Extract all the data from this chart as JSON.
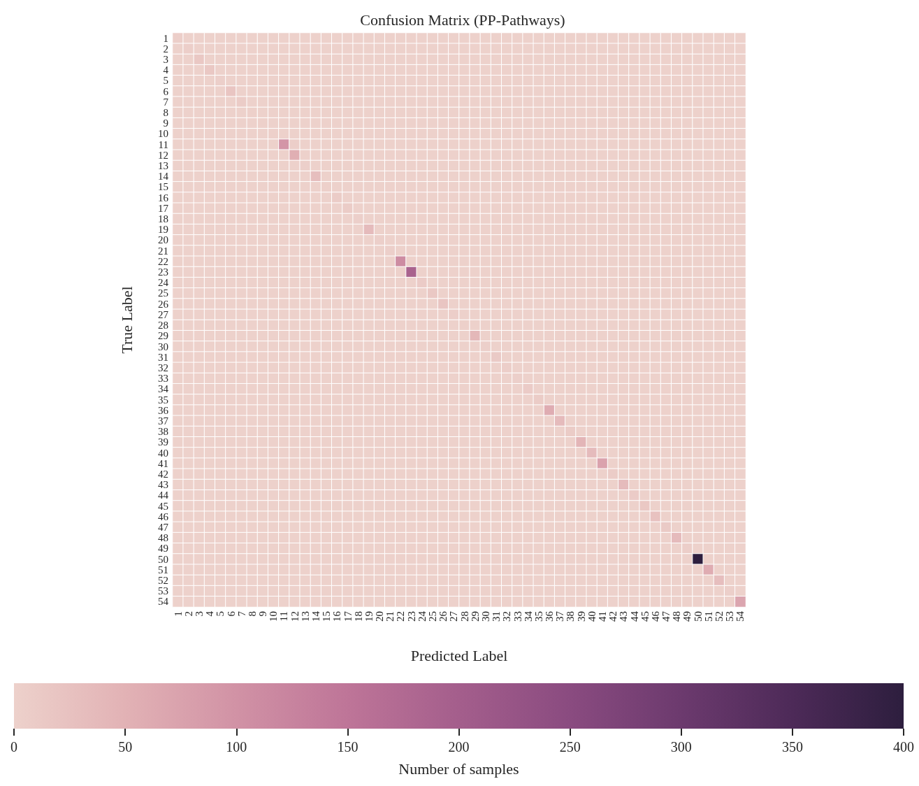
{
  "chart_data": {
    "type": "heatmap",
    "title": "Confusion Matrix (PP-Pathways)",
    "xlabel": "Predicted Label",
    "ylabel": "True Label",
    "clabel": "Number of samples",
    "categories": [
      "1",
      "2",
      "3",
      "4",
      "5",
      "6",
      "7",
      "8",
      "9",
      "10",
      "11",
      "12",
      "13",
      "14",
      "15",
      "16",
      "17",
      "18",
      "19",
      "20",
      "21",
      "22",
      "23",
      "24",
      "25",
      "26",
      "27",
      "28",
      "29",
      "30",
      "31",
      "32",
      "33",
      "34",
      "35",
      "36",
      "37",
      "38",
      "39",
      "40",
      "41",
      "42",
      "43",
      "44",
      "45",
      "46",
      "47",
      "48",
      "49",
      "50",
      "51",
      "52",
      "53",
      "54"
    ],
    "y_categories": [
      "1",
      "2",
      "3",
      "4",
      "5",
      "6",
      "7",
      "8",
      "9",
      "10",
      "11",
      "12",
      "13",
      "14",
      "15",
      "16",
      "17",
      "18",
      "19",
      "20",
      "21",
      "22",
      "23",
      "24",
      "25",
      "26",
      "27",
      "28",
      "29",
      "30",
      "31",
      "32",
      "33",
      "34",
      "35",
      "36",
      "37",
      "38",
      "39",
      "40",
      "41",
      "42",
      "43",
      "44",
      "45",
      "46",
      "47",
      "48",
      "49",
      "50",
      "51",
      "52",
      "53",
      "54"
    ],
    "clim": [
      0,
      400
    ],
    "cticks": [
      0,
      50,
      100,
      150,
      200,
      250,
      300,
      350,
      400
    ],
    "cells": [
      [
        5,
        0,
        0,
        0,
        0,
        0,
        0,
        0,
        0,
        0,
        0,
        0,
        0,
        0,
        0,
        0,
        0,
        0,
        0,
        0,
        0,
        0,
        0,
        0,
        0,
        0,
        0,
        0,
        0,
        0,
        0,
        0,
        0,
        0,
        0,
        0,
        0,
        0,
        0,
        0,
        0,
        0,
        0,
        0,
        0,
        0,
        0,
        0,
        0,
        0,
        0,
        0,
        0,
        0
      ],
      [
        0,
        5,
        0,
        0,
        0,
        0,
        0,
        0,
        0,
        0,
        0,
        0,
        0,
        0,
        0,
        0,
        0,
        0,
        0,
        0,
        0,
        0,
        0,
        0,
        0,
        0,
        0,
        0,
        0,
        0,
        0,
        0,
        0,
        0,
        0,
        0,
        0,
        0,
        0,
        0,
        0,
        0,
        0,
        0,
        0,
        0,
        0,
        0,
        0,
        0,
        0,
        0,
        0,
        0
      ],
      [
        0,
        0,
        15,
        0,
        0,
        0,
        0,
        0,
        0,
        0,
        0,
        0,
        0,
        0,
        0,
        0,
        0,
        0,
        0,
        0,
        0,
        0,
        0,
        0,
        0,
        0,
        0,
        0,
        0,
        0,
        0,
        0,
        0,
        0,
        0,
        0,
        0,
        0,
        0,
        0,
        0,
        0,
        0,
        0,
        0,
        0,
        0,
        0,
        0,
        0,
        0,
        0,
        0,
        0
      ],
      [
        0,
        0,
        0,
        15,
        0,
        0,
        0,
        0,
        0,
        0,
        0,
        0,
        0,
        0,
        0,
        0,
        0,
        0,
        0,
        0,
        0,
        0,
        0,
        0,
        0,
        0,
        0,
        0,
        0,
        0,
        0,
        0,
        0,
        0,
        0,
        0,
        0,
        0,
        0,
        0,
        0,
        0,
        0,
        0,
        0,
        0,
        0,
        0,
        0,
        0,
        0,
        0,
        0,
        0
      ],
      [
        0,
        0,
        0,
        0,
        3,
        0,
        0,
        0,
        0,
        0,
        0,
        0,
        0,
        0,
        0,
        0,
        0,
        0,
        0,
        0,
        0,
        0,
        0,
        0,
        0,
        0,
        0,
        0,
        0,
        0,
        0,
        0,
        0,
        0,
        0,
        0,
        0,
        0,
        0,
        0,
        0,
        0,
        0,
        0,
        0,
        0,
        0,
        0,
        0,
        0,
        0,
        0,
        0,
        0
      ],
      [
        0,
        0,
        0,
        0,
        0,
        20,
        0,
        0,
        0,
        0,
        0,
        0,
        0,
        0,
        0,
        0,
        0,
        0,
        0,
        0,
        0,
        0,
        0,
        0,
        0,
        0,
        0,
        0,
        0,
        0,
        0,
        0,
        0,
        0,
        0,
        0,
        0,
        0,
        0,
        0,
        0,
        0,
        0,
        0,
        0,
        0,
        0,
        0,
        0,
        0,
        0,
        0,
        0,
        0
      ],
      [
        0,
        0,
        0,
        0,
        0,
        0,
        8,
        0,
        0,
        0,
        0,
        0,
        0,
        0,
        0,
        0,
        0,
        0,
        0,
        0,
        0,
        0,
        0,
        0,
        0,
        0,
        0,
        0,
        0,
        0,
        0,
        0,
        0,
        0,
        0,
        0,
        0,
        0,
        0,
        0,
        0,
        0,
        0,
        0,
        0,
        0,
        0,
        0,
        0,
        0,
        0,
        0,
        0,
        0
      ],
      [
        0,
        0,
        0,
        0,
        0,
        0,
        0,
        2,
        0,
        0,
        0,
        0,
        0,
        0,
        0,
        0,
        0,
        0,
        0,
        0,
        0,
        0,
        0,
        0,
        0,
        0,
        0,
        0,
        0,
        0,
        0,
        0,
        0,
        0,
        0,
        0,
        0,
        0,
        0,
        0,
        0,
        0,
        0,
        0,
        0,
        0,
        0,
        0,
        0,
        0,
        0,
        0,
        0,
        0
      ],
      [
        0,
        0,
        0,
        0,
        0,
        0,
        0,
        0,
        2,
        0,
        0,
        0,
        0,
        0,
        0,
        0,
        0,
        0,
        0,
        0,
        0,
        0,
        0,
        0,
        0,
        0,
        0,
        0,
        0,
        0,
        0,
        0,
        0,
        0,
        0,
        0,
        0,
        0,
        0,
        0,
        0,
        0,
        0,
        0,
        0,
        0,
        0,
        0,
        0,
        0,
        0,
        0,
        0,
        0
      ],
      [
        0,
        0,
        0,
        0,
        0,
        0,
        0,
        0,
        0,
        2,
        0,
        0,
        0,
        0,
        0,
        0,
        0,
        0,
        0,
        0,
        0,
        0,
        0,
        0,
        0,
        0,
        0,
        0,
        0,
        0,
        0,
        0,
        0,
        0,
        0,
        0,
        0,
        0,
        0,
        0,
        0,
        0,
        0,
        0,
        0,
        0,
        0,
        0,
        0,
        0,
        0,
        0,
        0,
        0
      ],
      [
        0,
        0,
        0,
        0,
        0,
        0,
        0,
        0,
        0,
        0,
        95,
        5,
        0,
        0,
        0,
        0,
        0,
        0,
        0,
        0,
        0,
        0,
        0,
        0,
        0,
        0,
        0,
        0,
        0,
        0,
        0,
        0,
        0,
        0,
        0,
        0,
        0,
        0,
        0,
        0,
        0,
        0,
        0,
        0,
        0,
        0,
        0,
        0,
        0,
        0,
        0,
        0,
        0,
        0
      ],
      [
        0,
        0,
        0,
        0,
        0,
        0,
        0,
        0,
        0,
        0,
        0,
        55,
        0,
        0,
        0,
        0,
        0,
        0,
        0,
        0,
        0,
        0,
        0,
        0,
        0,
        0,
        0,
        0,
        0,
        0,
        0,
        0,
        0,
        0,
        0,
        0,
        0,
        0,
        0,
        0,
        0,
        0,
        0,
        0,
        0,
        0,
        0,
        0,
        0,
        0,
        0,
        0,
        0,
        0
      ],
      [
        0,
        0,
        0,
        0,
        0,
        0,
        0,
        0,
        0,
        0,
        0,
        0,
        3,
        0,
        0,
        0,
        0,
        0,
        0,
        0,
        0,
        0,
        0,
        0,
        0,
        0,
        0,
        0,
        0,
        0,
        0,
        0,
        0,
        0,
        0,
        0,
        0,
        0,
        0,
        0,
        0,
        0,
        0,
        0,
        0,
        0,
        0,
        0,
        0,
        0,
        0,
        0,
        0,
        0
      ],
      [
        0,
        0,
        0,
        0,
        0,
        0,
        0,
        0,
        0,
        0,
        0,
        0,
        0,
        30,
        0,
        0,
        0,
        0,
        0,
        0,
        0,
        0,
        0,
        0,
        0,
        0,
        0,
        0,
        0,
        0,
        0,
        0,
        0,
        0,
        0,
        0,
        0,
        0,
        0,
        0,
        0,
        0,
        0,
        0,
        0,
        0,
        0,
        0,
        0,
        0,
        0,
        0,
        0,
        0
      ],
      [
        0,
        0,
        0,
        0,
        0,
        0,
        0,
        0,
        0,
        0,
        0,
        0,
        0,
        0,
        2,
        0,
        0,
        0,
        0,
        0,
        0,
        0,
        0,
        0,
        0,
        0,
        0,
        0,
        0,
        0,
        0,
        0,
        0,
        0,
        0,
        0,
        0,
        0,
        0,
        0,
        0,
        0,
        0,
        0,
        0,
        0,
        0,
        0,
        0,
        0,
        0,
        0,
        0,
        0
      ],
      [
        0,
        0,
        0,
        0,
        0,
        0,
        0,
        0,
        0,
        0,
        0,
        0,
        0,
        0,
        0,
        8,
        0,
        0,
        0,
        0,
        0,
        0,
        0,
        0,
        0,
        0,
        0,
        0,
        0,
        0,
        0,
        0,
        0,
        0,
        0,
        0,
        0,
        0,
        0,
        0,
        0,
        0,
        0,
        0,
        0,
        0,
        0,
        0,
        0,
        0,
        0,
        0,
        0,
        0
      ],
      [
        0,
        0,
        0,
        0,
        0,
        0,
        0,
        0,
        0,
        0,
        0,
        0,
        0,
        0,
        0,
        0,
        8,
        0,
        0,
        0,
        0,
        0,
        0,
        0,
        0,
        0,
        0,
        0,
        0,
        0,
        0,
        0,
        0,
        0,
        0,
        0,
        0,
        0,
        0,
        0,
        0,
        0,
        0,
        0,
        0,
        0,
        0,
        0,
        0,
        0,
        0,
        0,
        0,
        0
      ],
      [
        0,
        0,
        0,
        0,
        0,
        0,
        0,
        0,
        0,
        0,
        0,
        0,
        0,
        0,
        0,
        0,
        0,
        3,
        0,
        0,
        0,
        0,
        0,
        0,
        0,
        0,
        0,
        0,
        0,
        0,
        0,
        0,
        0,
        0,
        0,
        0,
        0,
        0,
        0,
        0,
        0,
        0,
        0,
        0,
        0,
        0,
        0,
        0,
        0,
        0,
        0,
        0,
        0,
        0
      ],
      [
        0,
        0,
        0,
        0,
        0,
        0,
        0,
        0,
        0,
        0,
        0,
        0,
        0,
        0,
        0,
        0,
        0,
        0,
        35,
        0,
        0,
        0,
        0,
        0,
        0,
        0,
        0,
        0,
        0,
        0,
        0,
        0,
        0,
        0,
        0,
        0,
        0,
        0,
        0,
        0,
        0,
        0,
        0,
        0,
        0,
        0,
        0,
        0,
        0,
        0,
        0,
        0,
        0,
        0
      ],
      [
        0,
        0,
        0,
        0,
        0,
        0,
        0,
        0,
        0,
        0,
        0,
        0,
        0,
        0,
        0,
        0,
        0,
        0,
        0,
        3,
        0,
        0,
        0,
        0,
        0,
        0,
        0,
        0,
        0,
        0,
        0,
        0,
        0,
        0,
        0,
        0,
        0,
        0,
        0,
        0,
        0,
        0,
        0,
        0,
        0,
        0,
        0,
        0,
        0,
        0,
        0,
        0,
        0,
        0
      ],
      [
        0,
        0,
        0,
        0,
        0,
        0,
        0,
        0,
        0,
        0,
        0,
        0,
        0,
        0,
        0,
        0,
        0,
        0,
        0,
        0,
        3,
        0,
        0,
        0,
        0,
        0,
        0,
        0,
        0,
        0,
        0,
        0,
        0,
        0,
        0,
        0,
        0,
        0,
        0,
        0,
        0,
        0,
        0,
        0,
        0,
        0,
        0,
        0,
        0,
        0,
        0,
        0,
        0,
        0
      ],
      [
        0,
        0,
        0,
        0,
        0,
        0,
        0,
        0,
        0,
        0,
        0,
        0,
        0,
        0,
        0,
        0,
        0,
        0,
        0,
        0,
        0,
        110,
        0,
        0,
        0,
        0,
        0,
        0,
        0,
        0,
        0,
        0,
        0,
        0,
        0,
        0,
        0,
        0,
        0,
        0,
        0,
        0,
        0,
        0,
        0,
        0,
        0,
        0,
        0,
        0,
        0,
        0,
        0,
        0
      ],
      [
        0,
        0,
        0,
        0,
        0,
        0,
        0,
        0,
        0,
        0,
        0,
        0,
        0,
        0,
        0,
        0,
        0,
        0,
        0,
        0,
        0,
        0,
        190,
        0,
        0,
        0,
        0,
        0,
        0,
        0,
        0,
        0,
        0,
        0,
        0,
        0,
        0,
        0,
        0,
        0,
        0,
        0,
        0,
        0,
        0,
        0,
        0,
        0,
        0,
        0,
        0,
        0,
        0,
        0
      ],
      [
        0,
        0,
        0,
        0,
        0,
        0,
        0,
        0,
        0,
        0,
        0,
        0,
        0,
        0,
        0,
        0,
        0,
        0,
        0,
        0,
        0,
        0,
        0,
        10,
        0,
        0,
        0,
        0,
        0,
        0,
        0,
        0,
        0,
        0,
        0,
        0,
        0,
        0,
        0,
        0,
        0,
        0,
        0,
        0,
        0,
        0,
        0,
        0,
        0,
        0,
        0,
        0,
        0,
        0
      ],
      [
        0,
        0,
        0,
        0,
        0,
        0,
        0,
        0,
        0,
        0,
        0,
        0,
        0,
        0,
        0,
        0,
        0,
        0,
        0,
        0,
        0,
        0,
        0,
        0,
        15,
        0,
        0,
        0,
        0,
        0,
        0,
        0,
        0,
        0,
        0,
        0,
        0,
        0,
        0,
        0,
        0,
        0,
        0,
        0,
        0,
        0,
        0,
        0,
        0,
        0,
        0,
        0,
        0,
        0
      ],
      [
        0,
        0,
        0,
        0,
        0,
        0,
        0,
        0,
        0,
        0,
        0,
        0,
        0,
        0,
        0,
        0,
        0,
        0,
        0,
        0,
        0,
        0,
        0,
        0,
        0,
        20,
        0,
        0,
        0,
        0,
        0,
        0,
        0,
        0,
        0,
        0,
        0,
        0,
        0,
        0,
        0,
        0,
        0,
        0,
        0,
        0,
        0,
        0,
        0,
        0,
        0,
        0,
        0,
        0
      ],
      [
        0,
        0,
        0,
        0,
        0,
        0,
        0,
        0,
        0,
        0,
        0,
        0,
        0,
        0,
        0,
        0,
        0,
        0,
        0,
        0,
        0,
        0,
        0,
        0,
        0,
        0,
        5,
        0,
        0,
        0,
        0,
        0,
        0,
        0,
        0,
        0,
        0,
        0,
        0,
        0,
        0,
        0,
        0,
        0,
        0,
        0,
        0,
        0,
        0,
        0,
        0,
        0,
        0,
        0
      ],
      [
        0,
        0,
        0,
        0,
        0,
        0,
        0,
        0,
        0,
        0,
        0,
        0,
        0,
        0,
        0,
        0,
        0,
        0,
        0,
        0,
        0,
        0,
        0,
        0,
        0,
        0,
        0,
        2,
        0,
        0,
        0,
        0,
        0,
        0,
        0,
        0,
        0,
        0,
        0,
        0,
        0,
        0,
        0,
        0,
        0,
        0,
        0,
        0,
        0,
        0,
        0,
        0,
        0,
        0
      ],
      [
        0,
        0,
        0,
        0,
        0,
        0,
        0,
        0,
        0,
        0,
        0,
        0,
        0,
        0,
        0,
        0,
        0,
        0,
        0,
        0,
        0,
        0,
        0,
        0,
        0,
        0,
        0,
        0,
        40,
        0,
        0,
        0,
        0,
        0,
        0,
        0,
        0,
        0,
        0,
        0,
        0,
        0,
        0,
        0,
        0,
        0,
        0,
        0,
        0,
        0,
        0,
        0,
        0,
        0
      ],
      [
        0,
        0,
        0,
        0,
        0,
        0,
        0,
        0,
        0,
        0,
        0,
        0,
        0,
        0,
        0,
        0,
        0,
        0,
        0,
        0,
        0,
        0,
        0,
        0,
        0,
        0,
        0,
        0,
        0,
        3,
        0,
        0,
        0,
        0,
        0,
        0,
        0,
        0,
        0,
        0,
        0,
        0,
        0,
        0,
        0,
        0,
        0,
        0,
        0,
        0,
        0,
        0,
        0,
        0
      ],
      [
        0,
        0,
        0,
        0,
        0,
        0,
        0,
        0,
        0,
        0,
        0,
        0,
        0,
        0,
        0,
        0,
        0,
        0,
        0,
        0,
        0,
        0,
        0,
        0,
        0,
        0,
        0,
        0,
        0,
        0,
        12,
        0,
        0,
        0,
        0,
        0,
        0,
        0,
        0,
        0,
        0,
        0,
        0,
        0,
        0,
        0,
        0,
        0,
        0,
        0,
        0,
        0,
        0,
        0
      ],
      [
        0,
        0,
        0,
        0,
        0,
        0,
        0,
        0,
        0,
        0,
        0,
        0,
        0,
        0,
        0,
        0,
        0,
        0,
        0,
        0,
        0,
        0,
        0,
        0,
        0,
        0,
        0,
        0,
        0,
        0,
        0,
        5,
        0,
        0,
        0,
        0,
        0,
        0,
        0,
        0,
        0,
        0,
        0,
        0,
        0,
        0,
        0,
        0,
        0,
        0,
        0,
        0,
        0,
        0
      ],
      [
        0,
        0,
        0,
        0,
        0,
        0,
        0,
        0,
        0,
        0,
        0,
        0,
        0,
        0,
        0,
        0,
        0,
        0,
        0,
        0,
        0,
        0,
        0,
        0,
        0,
        0,
        0,
        0,
        0,
        0,
        0,
        0,
        3,
        0,
        0,
        0,
        0,
        0,
        0,
        0,
        0,
        0,
        0,
        0,
        0,
        0,
        0,
        0,
        0,
        0,
        0,
        0,
        0,
        0
      ],
      [
        0,
        0,
        0,
        0,
        0,
        0,
        0,
        0,
        0,
        0,
        0,
        0,
        0,
        0,
        0,
        0,
        0,
        0,
        0,
        0,
        0,
        0,
        0,
        0,
        0,
        0,
        0,
        0,
        0,
        0,
        0,
        0,
        0,
        10,
        0,
        0,
        0,
        0,
        0,
        0,
        0,
        0,
        0,
        0,
        0,
        0,
        0,
        0,
        0,
        0,
        0,
        0,
        0,
        0
      ],
      [
        0,
        0,
        0,
        0,
        0,
        0,
        0,
        0,
        0,
        0,
        0,
        0,
        0,
        0,
        0,
        0,
        0,
        0,
        0,
        0,
        0,
        0,
        0,
        0,
        0,
        0,
        0,
        0,
        0,
        0,
        0,
        0,
        0,
        0,
        8,
        0,
        0,
        0,
        0,
        0,
        0,
        0,
        0,
        0,
        0,
        0,
        0,
        0,
        0,
        0,
        0,
        0,
        0,
        0
      ],
      [
        0,
        0,
        0,
        0,
        0,
        0,
        0,
        0,
        0,
        0,
        0,
        0,
        0,
        0,
        0,
        0,
        0,
        0,
        0,
        0,
        0,
        0,
        0,
        0,
        0,
        0,
        0,
        0,
        0,
        0,
        0,
        0,
        0,
        0,
        0,
        60,
        0,
        0,
        0,
        0,
        0,
        0,
        0,
        0,
        0,
        0,
        0,
        0,
        0,
        0,
        0,
        0,
        0,
        0
      ],
      [
        0,
        0,
        0,
        0,
        0,
        0,
        0,
        0,
        0,
        0,
        0,
        0,
        0,
        0,
        0,
        0,
        0,
        0,
        0,
        0,
        0,
        0,
        0,
        0,
        0,
        0,
        0,
        0,
        0,
        0,
        0,
        0,
        0,
        0,
        0,
        0,
        35,
        0,
        0,
        0,
        0,
        0,
        0,
        0,
        0,
        0,
        0,
        0,
        0,
        0,
        0,
        0,
        0,
        0
      ],
      [
        0,
        0,
        0,
        0,
        0,
        0,
        0,
        0,
        0,
        0,
        0,
        0,
        0,
        0,
        0,
        0,
        0,
        0,
        0,
        0,
        0,
        0,
        0,
        0,
        0,
        0,
        0,
        0,
        0,
        0,
        0,
        0,
        0,
        0,
        0,
        0,
        0,
        8,
        0,
        0,
        0,
        0,
        0,
        0,
        0,
        0,
        0,
        0,
        0,
        0,
        0,
        0,
        0,
        0
      ],
      [
        0,
        0,
        0,
        0,
        0,
        0,
        0,
        0,
        0,
        0,
        0,
        0,
        0,
        0,
        0,
        0,
        0,
        0,
        0,
        0,
        0,
        0,
        0,
        0,
        0,
        0,
        0,
        0,
        0,
        0,
        0,
        0,
        0,
        0,
        0,
        0,
        0,
        0,
        45,
        0,
        0,
        0,
        0,
        0,
        0,
        0,
        0,
        0,
        0,
        0,
        0,
        0,
        0,
        0
      ],
      [
        0,
        0,
        0,
        0,
        0,
        0,
        0,
        0,
        0,
        0,
        0,
        0,
        0,
        0,
        0,
        0,
        0,
        0,
        0,
        0,
        0,
        0,
        0,
        0,
        0,
        0,
        0,
        0,
        0,
        0,
        0,
        0,
        0,
        0,
        0,
        0,
        0,
        0,
        0,
        35,
        0,
        0,
        0,
        0,
        0,
        0,
        0,
        0,
        0,
        0,
        0,
        0,
        0,
        0
      ],
      [
        0,
        0,
        0,
        0,
        0,
        0,
        0,
        0,
        0,
        0,
        0,
        0,
        0,
        0,
        0,
        0,
        0,
        0,
        0,
        0,
        0,
        0,
        0,
        0,
        0,
        0,
        0,
        0,
        0,
        0,
        0,
        0,
        0,
        0,
        0,
        0,
        0,
        0,
        0,
        0,
        75,
        0,
        0,
        0,
        0,
        0,
        0,
        0,
        0,
        0,
        0,
        0,
        0,
        0
      ],
      [
        0,
        0,
        0,
        0,
        0,
        0,
        0,
        0,
        0,
        0,
        0,
        0,
        0,
        0,
        0,
        0,
        0,
        0,
        0,
        0,
        0,
        0,
        0,
        0,
        0,
        0,
        0,
        0,
        0,
        0,
        0,
        0,
        0,
        0,
        0,
        0,
        0,
        0,
        0,
        0,
        0,
        8,
        0,
        0,
        0,
        0,
        0,
        0,
        0,
        0,
        0,
        0,
        0,
        0
      ],
      [
        0,
        0,
        0,
        0,
        0,
        0,
        0,
        0,
        0,
        0,
        0,
        0,
        0,
        0,
        0,
        0,
        0,
        0,
        0,
        0,
        0,
        0,
        0,
        0,
        0,
        0,
        0,
        0,
        0,
        0,
        0,
        0,
        0,
        0,
        0,
        0,
        0,
        0,
        0,
        0,
        0,
        0,
        35,
        0,
        0,
        0,
        0,
        0,
        0,
        0,
        0,
        0,
        0,
        0
      ],
      [
        0,
        0,
        0,
        0,
        0,
        0,
        0,
        0,
        0,
        0,
        0,
        0,
        0,
        0,
        0,
        0,
        0,
        0,
        0,
        0,
        0,
        0,
        0,
        0,
        0,
        0,
        0,
        0,
        0,
        0,
        0,
        0,
        0,
        0,
        0,
        0,
        0,
        0,
        0,
        0,
        0,
        0,
        0,
        10,
        0,
        0,
        0,
        0,
        0,
        0,
        0,
        0,
        0,
        0
      ],
      [
        0,
        0,
        0,
        0,
        0,
        0,
        0,
        0,
        0,
        0,
        0,
        0,
        0,
        0,
        0,
        0,
        0,
        0,
        0,
        0,
        0,
        0,
        0,
        0,
        0,
        0,
        0,
        0,
        0,
        0,
        0,
        0,
        0,
        0,
        0,
        0,
        0,
        0,
        0,
        0,
        0,
        0,
        0,
        0,
        15,
        0,
        0,
        0,
        0,
        0,
        0,
        0,
        0,
        0
      ],
      [
        0,
        0,
        0,
        0,
        0,
        0,
        0,
        0,
        0,
        0,
        0,
        0,
        0,
        0,
        0,
        0,
        0,
        0,
        0,
        0,
        0,
        0,
        0,
        0,
        0,
        0,
        0,
        0,
        0,
        0,
        0,
        0,
        0,
        0,
        0,
        0,
        0,
        0,
        0,
        0,
        0,
        0,
        0,
        0,
        0,
        25,
        0,
        0,
        0,
        0,
        0,
        0,
        0,
        0
      ],
      [
        0,
        0,
        0,
        0,
        0,
        0,
        0,
        0,
        0,
        0,
        0,
        0,
        0,
        0,
        0,
        0,
        0,
        0,
        0,
        0,
        0,
        0,
        0,
        0,
        0,
        0,
        0,
        0,
        0,
        0,
        0,
        0,
        0,
        0,
        0,
        0,
        0,
        0,
        0,
        0,
        0,
        0,
        0,
        0,
        0,
        0,
        12,
        0,
        0,
        0,
        0,
        0,
        0,
        0
      ],
      [
        0,
        0,
        0,
        0,
        0,
        0,
        0,
        0,
        0,
        0,
        0,
        0,
        0,
        0,
        0,
        0,
        0,
        0,
        0,
        0,
        0,
        0,
        0,
        0,
        0,
        0,
        0,
        0,
        0,
        0,
        0,
        0,
        0,
        0,
        0,
        0,
        0,
        0,
        0,
        0,
        0,
        0,
        0,
        0,
        0,
        0,
        0,
        35,
        0,
        0,
        0,
        0,
        0,
        0
      ],
      [
        0,
        0,
        0,
        0,
        0,
        0,
        0,
        0,
        0,
        0,
        0,
        0,
        0,
        0,
        0,
        0,
        0,
        0,
        0,
        0,
        0,
        0,
        0,
        0,
        0,
        0,
        0,
        0,
        0,
        0,
        0,
        0,
        0,
        0,
        0,
        0,
        0,
        0,
        0,
        0,
        0,
        0,
        0,
        0,
        0,
        0,
        0,
        0,
        5,
        0,
        0,
        0,
        0,
        0
      ],
      [
        0,
        0,
        0,
        0,
        0,
        0,
        0,
        0,
        0,
        0,
        0,
        0,
        0,
        0,
        0,
        0,
        0,
        0,
        0,
        0,
        0,
        0,
        0,
        0,
        0,
        0,
        0,
        0,
        0,
        0,
        0,
        0,
        0,
        0,
        0,
        0,
        0,
        0,
        0,
        0,
        0,
        0,
        0,
        0,
        0,
        0,
        0,
        0,
        0,
        400,
        0,
        0,
        0,
        0
      ],
      [
        0,
        0,
        0,
        0,
        0,
        0,
        0,
        0,
        0,
        0,
        0,
        0,
        0,
        0,
        0,
        0,
        0,
        0,
        0,
        0,
        0,
        0,
        0,
        0,
        0,
        0,
        0,
        0,
        0,
        0,
        0,
        0,
        0,
        0,
        0,
        0,
        0,
        0,
        0,
        0,
        0,
        0,
        0,
        0,
        0,
        0,
        0,
        0,
        0,
        0,
        60,
        0,
        0,
        0
      ],
      [
        0,
        0,
        0,
        0,
        0,
        0,
        0,
        0,
        0,
        0,
        0,
        0,
        0,
        0,
        0,
        0,
        0,
        0,
        0,
        0,
        0,
        0,
        0,
        0,
        0,
        0,
        0,
        0,
        0,
        0,
        0,
        0,
        0,
        0,
        0,
        0,
        0,
        0,
        0,
        0,
        0,
        0,
        0,
        0,
        0,
        0,
        0,
        0,
        0,
        0,
        0,
        30,
        0,
        0
      ],
      [
        0,
        0,
        0,
        0,
        0,
        0,
        0,
        0,
        0,
        0,
        0,
        0,
        0,
        0,
        0,
        0,
        0,
        0,
        0,
        0,
        0,
        0,
        0,
        0,
        0,
        0,
        0,
        0,
        0,
        0,
        0,
        0,
        0,
        0,
        0,
        0,
        0,
        0,
        0,
        0,
        0,
        0,
        0,
        0,
        0,
        0,
        0,
        0,
        0,
        0,
        0,
        0,
        3,
        0
      ],
      [
        0,
        0,
        0,
        0,
        0,
        0,
        0,
        0,
        0,
        0,
        0,
        0,
        0,
        0,
        0,
        0,
        0,
        0,
        0,
        0,
        0,
        0,
        0,
        0,
        0,
        0,
        0,
        0,
        0,
        0,
        0,
        0,
        0,
        0,
        0,
        0,
        0,
        0,
        0,
        0,
        0,
        0,
        0,
        0,
        0,
        0,
        0,
        0,
        0,
        0,
        0,
        0,
        0,
        70
      ]
    ]
  }
}
